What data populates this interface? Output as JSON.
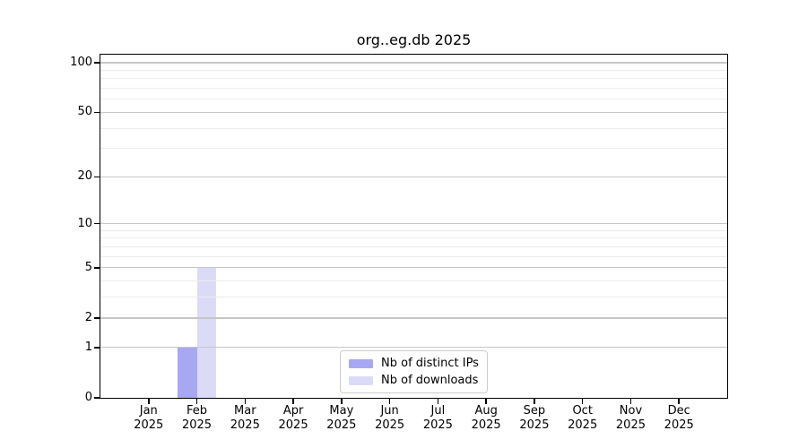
{
  "chart_data": {
    "type": "bar",
    "title": "org..eg.db 2025",
    "categories": [
      "Jan 2025",
      "Feb 2025",
      "Mar 2025",
      "Apr 2025",
      "May 2025",
      "Jun 2025",
      "Jul 2025",
      "Aug 2025",
      "Sep 2025",
      "Oct 2025",
      "Nov 2025",
      "Dec 2025"
    ],
    "series": [
      {
        "name": "Nb of distinct IPs",
        "color": "#a8a8f2",
        "values": [
          0,
          1,
          0,
          0,
          0,
          0,
          0,
          0,
          0,
          0,
          0,
          0
        ]
      },
      {
        "name": "Nb of downloads",
        "color": "#dbdbf8",
        "values": [
          0,
          5,
          0,
          0,
          0,
          0,
          0,
          0,
          0,
          0,
          0,
          0
        ]
      }
    ],
    "xlabel": "",
    "ylabel": "",
    "yscale": "log1p",
    "ylim": [
      0,
      112
    ],
    "y_major_ticks": [
      0,
      1,
      2,
      5,
      10,
      20,
      50,
      100
    ],
    "y_minor_gridlines": [
      3,
      4,
      6,
      7,
      8,
      9,
      30,
      40,
      60,
      70,
      80,
      90
    ],
    "grid": "horizontal, major and minor, drawn above bars",
    "legend_position": "lower center inside plot"
  },
  "colors": {
    "background": "#ffffff",
    "axis": "#000000",
    "text": "#000000",
    "major_grid": "#c6c6c6",
    "minor_grid": "#ececec",
    "legend_border": "#cccccc"
  }
}
